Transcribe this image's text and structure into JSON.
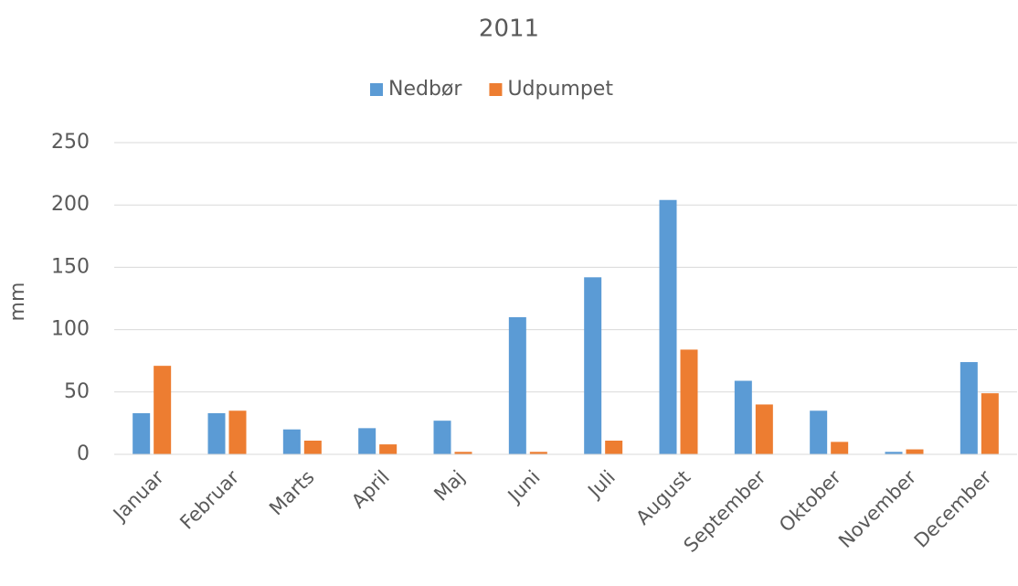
{
  "chart_data": {
    "type": "bar",
    "title": "2011",
    "y_label": "mm",
    "categories": [
      "Januar",
      "Februar",
      "Marts",
      "April",
      "Maj",
      "Juni",
      "Juli",
      "August",
      "September",
      "Oktober",
      "November",
      "December"
    ],
    "series": [
      {
        "name": "Nedbør",
        "color": "#5b9bd5",
        "values": [
          33,
          33,
          20,
          21,
          27,
          110,
          142,
          204,
          59,
          35,
          2,
          74
        ]
      },
      {
        "name": "Udpumpet",
        "color": "#ed7d31",
        "values": [
          71,
          35,
          11,
          8,
          2,
          2,
          11,
          84,
          40,
          10,
          4,
          49
        ]
      }
    ],
    "ylim": [
      0,
      250
    ],
    "yticks": [
      0,
      50,
      100,
      150,
      200,
      250
    ],
    "grid": true,
    "legend": "top"
  }
}
